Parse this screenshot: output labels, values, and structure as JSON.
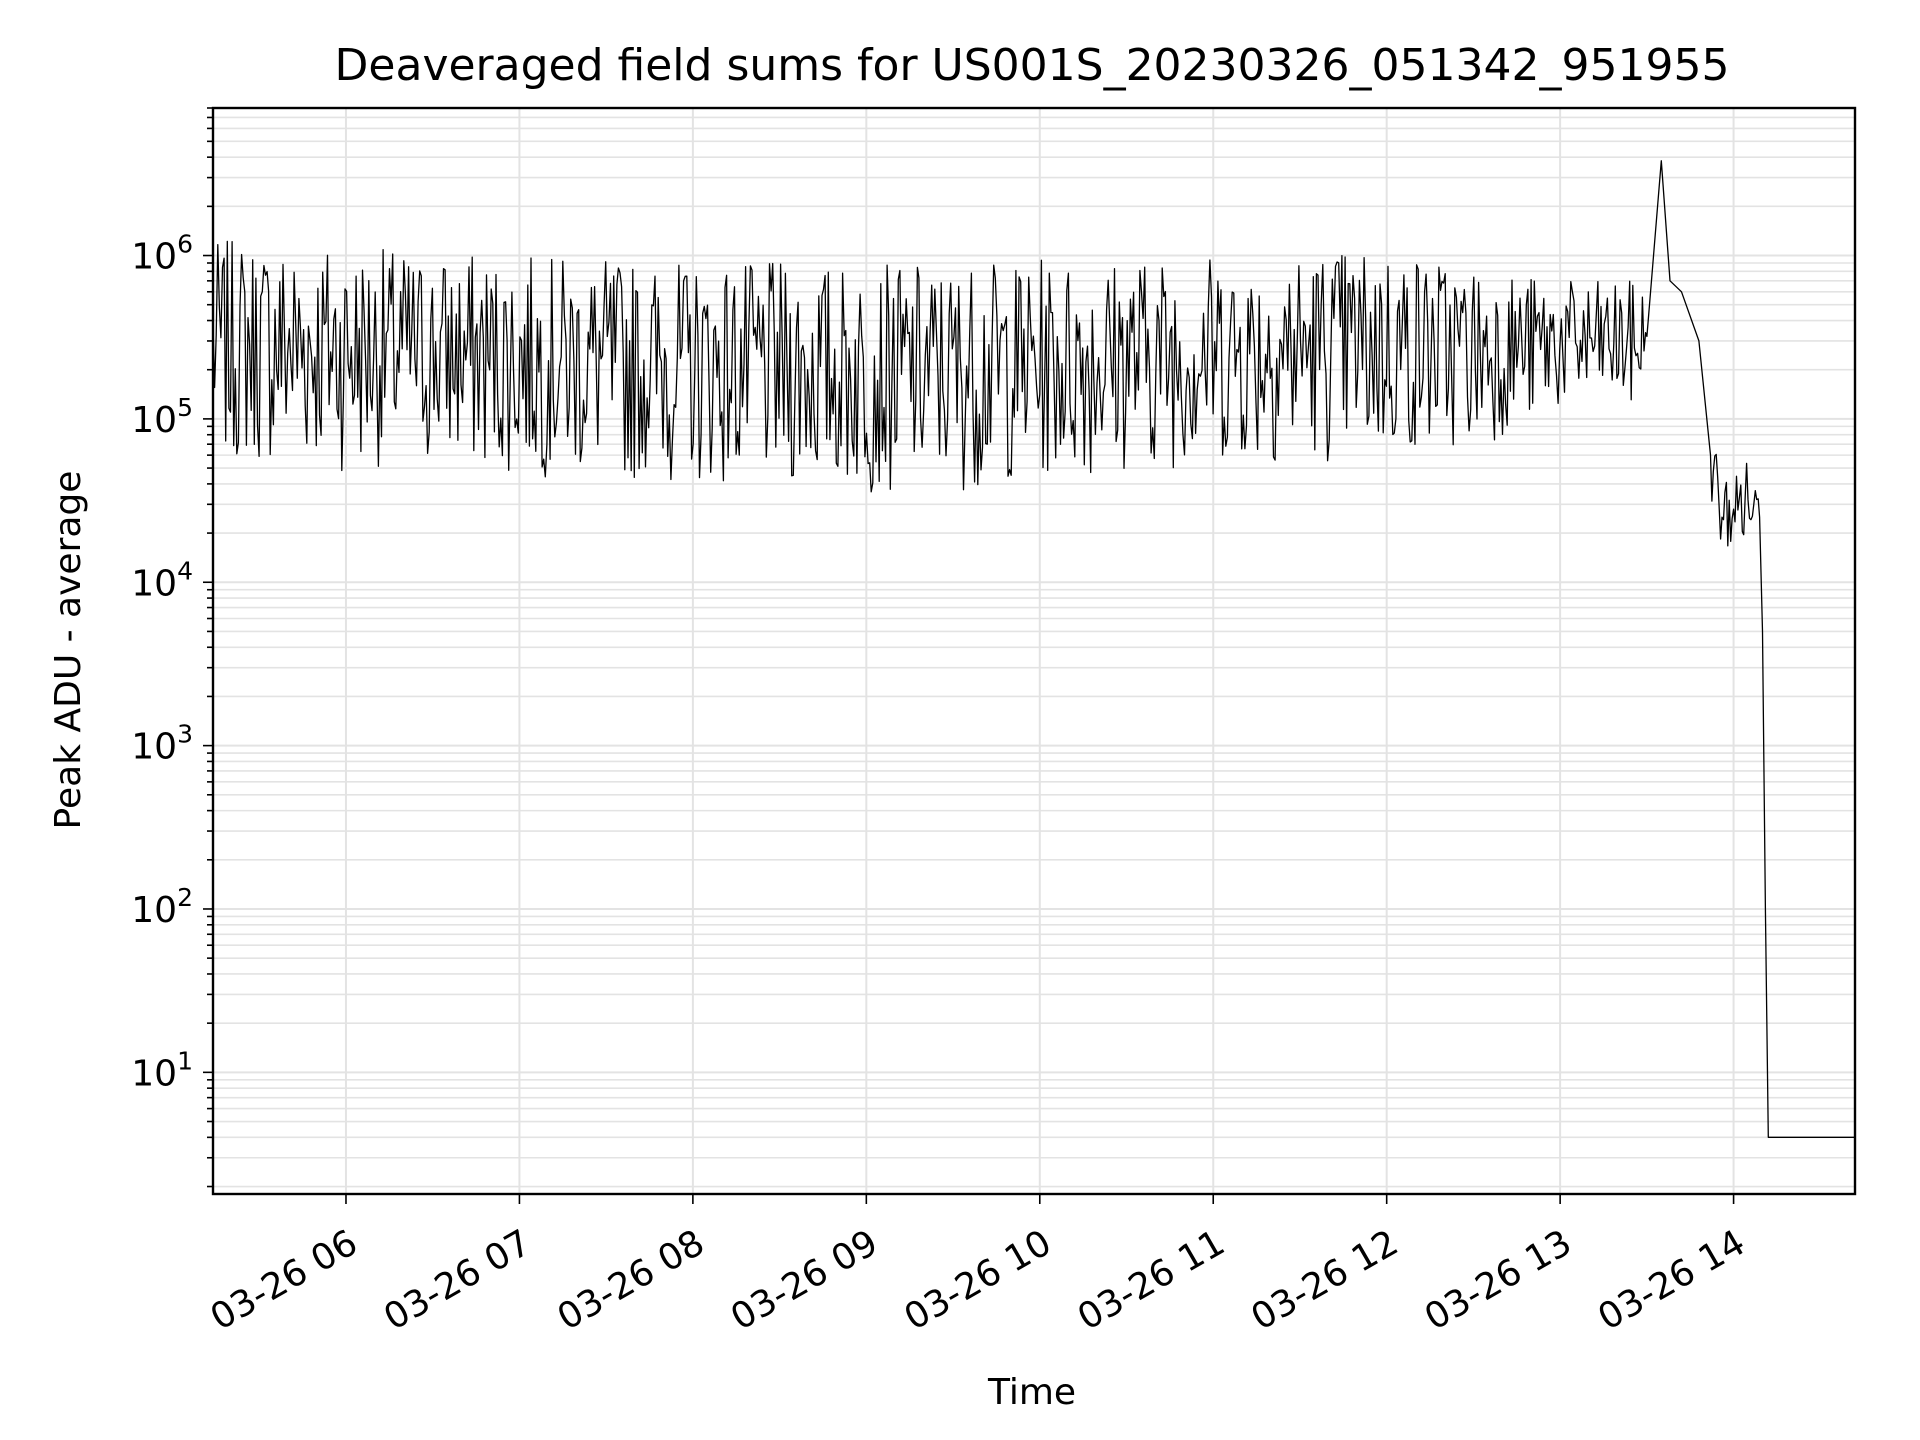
{
  "chart_data": {
    "type": "line",
    "title": "Deaveraged field sums for US001S_20230326_051342_951955",
    "xlabel": "Time",
    "ylabel": "Peak ADU - average",
    "y_scale": "log",
    "ylim": [
      1.8,
      8000000
    ],
    "xlim": [
      "03-26 05:14",
      "03-26 14:42"
    ],
    "grid": true,
    "line_color": "#000000",
    "x_ticks": [
      "03-26 06",
      "03-26 07",
      "03-26 08",
      "03-26 09",
      "03-26 10",
      "03-26 11",
      "03-26 12",
      "03-26 13",
      "03-26 14"
    ],
    "y_ticks": [
      {
        "base": "10",
        "exp": "1"
      },
      {
        "base": "10",
        "exp": "2"
      },
      {
        "base": "10",
        "exp": "3"
      },
      {
        "base": "10",
        "exp": "4"
      },
      {
        "base": "10",
        "exp": "5"
      },
      {
        "base": "10",
        "exp": "6"
      }
    ],
    "series": [
      {
        "x": [
          "03-26 05:14",
          "03-26 05:30",
          "03-26 05:45",
          "03-26 06:00",
          "03-26 06:15",
          "03-26 06:30",
          "03-26 07:00",
          "03-26 07:30",
          "03-26 08:00",
          "03-26 08:30",
          "03-26 09:00",
          "03-26 09:30",
          "03-26 10:00",
          "03-26 10:30",
          "03-26 11:00",
          "03-26 11:30",
          "03-26 12:00",
          "03-26 12:30",
          "03-26 13:00",
          "03-26 13:15",
          "03-26 13:30",
          "03-26 13:35",
          "03-26 13:38",
          "03-26 13:42",
          "03-26 13:48",
          "03-26 13:52",
          "03-26 13:56",
          "03-26 14:00",
          "03-26 14:05",
          "03-26 14:07",
          "03-26 14:09",
          "03-26 14:10",
          "03-26 14:11",
          "03-26 14:12",
          "03-26 14:42"
        ],
        "y": [
          200000,
          180000,
          150000,
          170000,
          160000,
          140000,
          120000,
          115000,
          105000,
          100000,
          90000,
          95000,
          100000,
          110000,
          120000,
          125000,
          130000,
          180000,
          220000,
          260000,
          320000,
          3800000,
          700000,
          600000,
          300000,
          60000,
          25000,
          28000,
          32000,
          30000,
          25000,
          5000,
          100,
          4,
          4
        ],
        "noise_band": {
          "low": [
            55000,
            52000,
            50000,
            48000,
            52000,
            50000,
            45000,
            42000,
            40000,
            38000,
            35000,
            36000,
            42000,
            48000,
            52000,
            54000,
            56000,
            65000,
            110000
          ],
          "high": [
            1200000,
            1300000,
            1250000,
            1200000,
            1100000,
            1050000,
            1000000,
            950000,
            900000,
            900000,
            880000,
            900000,
            950000,
            1000000,
            1050000,
            1100000,
            1150000,
            900000,
            700000
          ]
        }
      }
    ]
  }
}
